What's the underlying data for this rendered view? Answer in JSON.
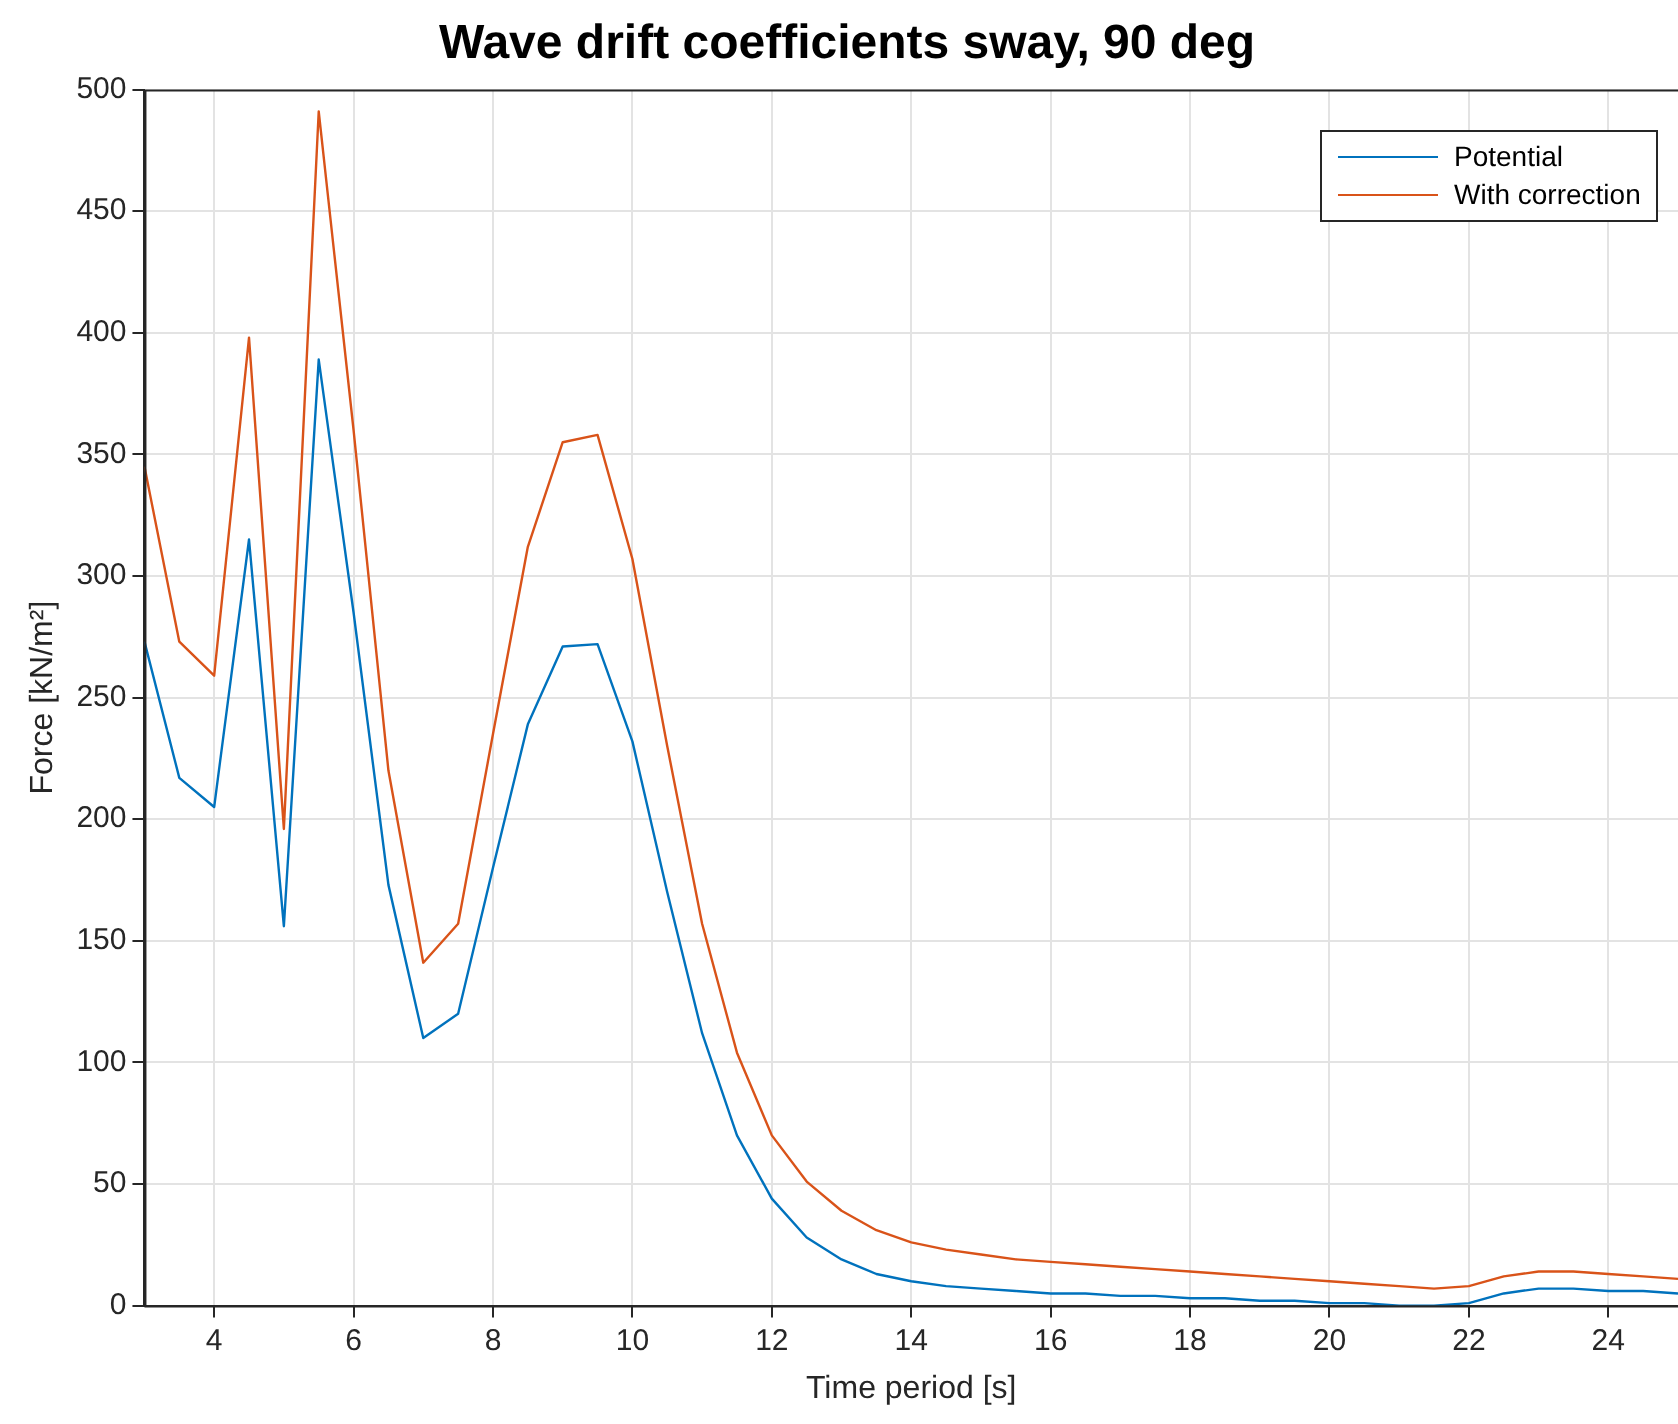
{
  "chart_data": {
    "type": "line",
    "title": "Wave drift coefficients sway, 90 deg",
    "xlabel": "Time period [s]",
    "ylabel": "Force [kN/m²]",
    "x": [
      3,
      3.5,
      4,
      4.5,
      5,
      5.5,
      6,
      6.5,
      7,
      7.5,
      8,
      8.5,
      9,
      9.5,
      10,
      10.5,
      11,
      11.5,
      12,
      12.5,
      13,
      13.5,
      14,
      14.5,
      15,
      15.5,
      16,
      16.5,
      17,
      17.5,
      18,
      18.5,
      19,
      19.5,
      20,
      20.5,
      21,
      21.5,
      22,
      22.5,
      23,
      23.5,
      24,
      24.5,
      25
    ],
    "series": [
      {
        "name": "Potential",
        "color": "#0072bd",
        "values": [
          273,
          217,
          205,
          315,
          156,
          389,
          285,
          173,
          110,
          120,
          180,
          239,
          271,
          272,
          232,
          170,
          112,
          70,
          44,
          28,
          19,
          13,
          10,
          8,
          7,
          6,
          5,
          5,
          4,
          4,
          3,
          3,
          2,
          2,
          1,
          1,
          0,
          0,
          1,
          5,
          7,
          7,
          6,
          6,
          5
        ]
      },
      {
        "name": "With correction",
        "color": "#d95319",
        "values": [
          345,
          273,
          259,
          398,
          196,
          491,
          360,
          220,
          141,
          157,
          235,
          312,
          355,
          358,
          307,
          230,
          157,
          104,
          70,
          51,
          39,
          31,
          26,
          23,
          21,
          19,
          18,
          17,
          16,
          15,
          14,
          13,
          12,
          11,
          10,
          9,
          8,
          7,
          8,
          12,
          14,
          14,
          13,
          12,
          11
        ]
      }
    ],
    "xlim": [
      3,
      25
    ],
    "xticks": [
      4,
      6,
      8,
      10,
      12,
      14,
      16,
      18,
      20,
      22,
      24
    ],
    "ylim": [
      0,
      500
    ],
    "yticks": [
      0,
      50,
      100,
      150,
      200,
      250,
      300,
      350,
      400,
      450,
      500
    ],
    "grid": true,
    "legend": "top right",
    "marker": "none",
    "line_style": "solid"
  }
}
